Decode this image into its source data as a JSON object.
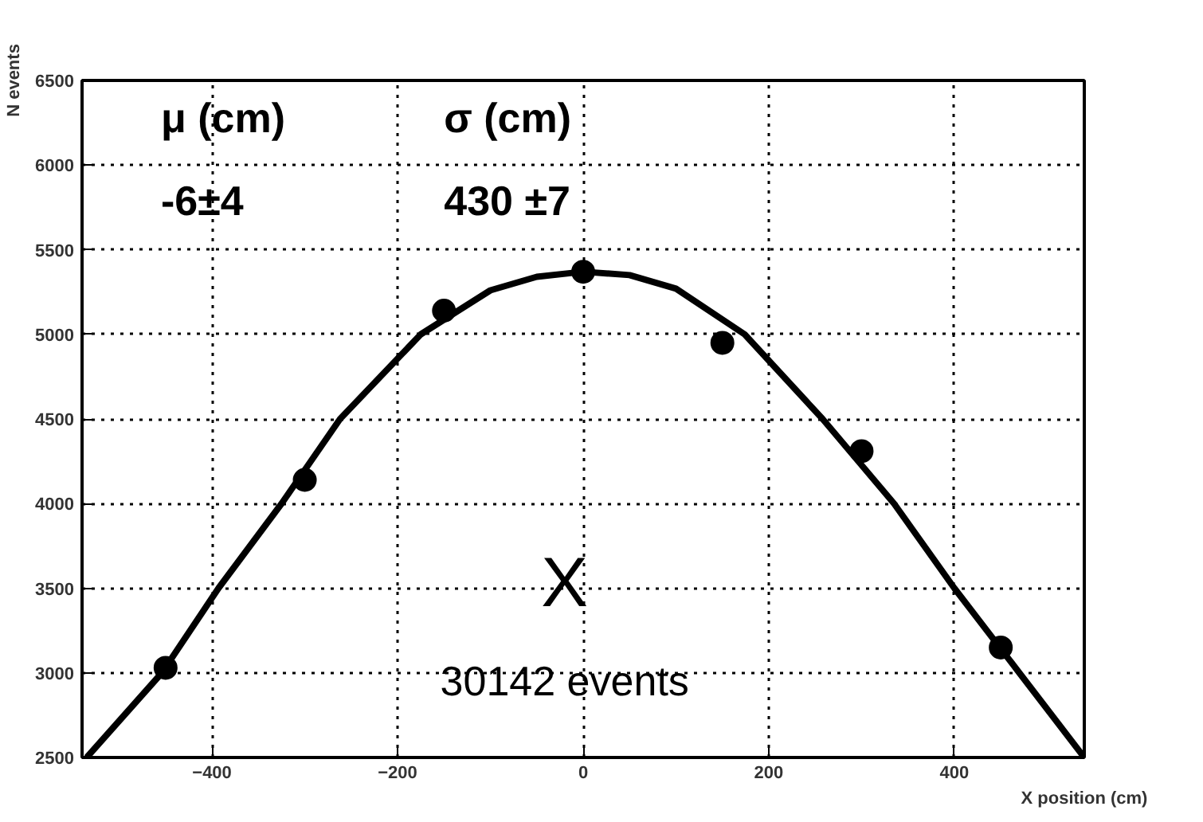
{
  "chart_data": {
    "type": "scatter",
    "xlabel": "X position (cm)",
    "ylabel": "N events",
    "xlim": [
      -540,
      540
    ],
    "ylim": [
      2500,
      6500
    ],
    "xticks": [
      -400,
      -200,
      0,
      200,
      400
    ],
    "yticks": [
      2500,
      3000,
      3500,
      4000,
      4500,
      5000,
      5500,
      6000,
      6500
    ],
    "grid": true,
    "annotations": [
      "μ (cm)",
      "σ (cm)",
      "-6±4",
      "430 ±7",
      "X",
      "30142 events"
    ],
    "series": [
      {
        "marker": "circle",
        "color": "#000000",
        "x": [
          -450,
          -300,
          -150,
          0,
          150,
          300,
          450
        ],
        "values": [
          3030,
          4140,
          5140,
          5370,
          4950,
          4310,
          3150
        ]
      },
      {
        "type": "line",
        "color": "#000000",
        "line_style": "solid",
        "x": [
          -535,
          -454,
          -393,
          -325,
          -262,
          -175,
          -100,
          -50,
          0,
          50,
          100,
          174,
          258,
          335,
          400,
          470,
          540
        ],
        "values": [
          2500,
          3000,
          3500,
          4000,
          4500,
          5000,
          5260,
          5340,
          5370,
          5350,
          5270,
          5000,
          4500,
          4000,
          3500,
          3000,
          2500
        ]
      }
    ]
  }
}
